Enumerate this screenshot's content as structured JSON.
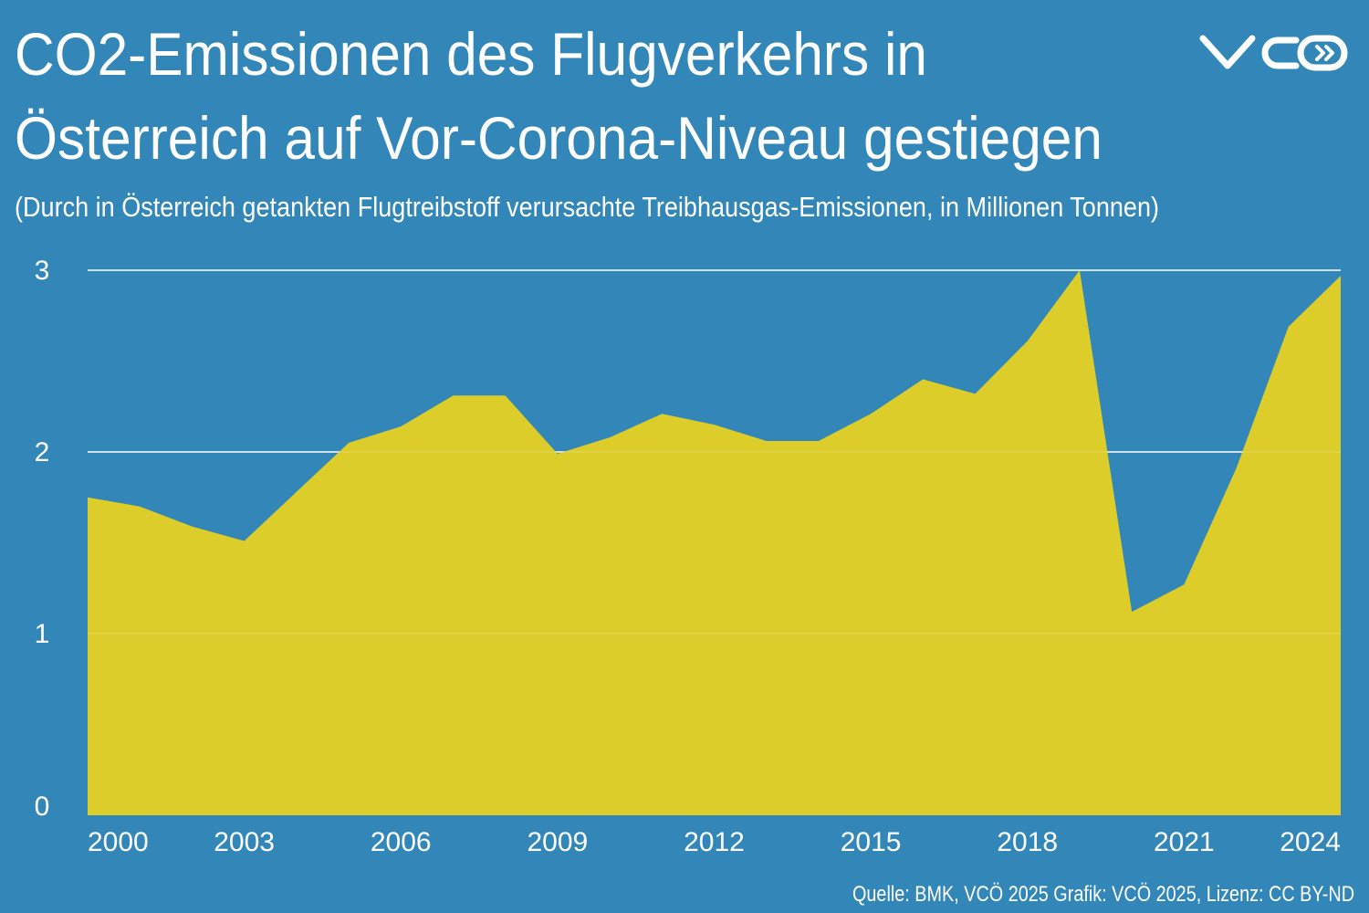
{
  "chart_data": {
    "type": "area",
    "title": [
      "CO2-Emissionen des Flugverkehrs in",
      "Österreich auf Vor-Corona-Niveau gestiegen"
    ],
    "subtitle": "(Durch in Österreich getankten Flugtreibstoff verursachte Treibhausgas-Emissionen, in Millionen Tonnen)",
    "source": "Quelle: BMK, VCÖ 2025 Grafik: VCÖ 2025, Lizenz: CC BY-ND",
    "x": [
      2000,
      2001,
      2002,
      2003,
      2004,
      2005,
      2006,
      2007,
      2008,
      2009,
      2010,
      2011,
      2012,
      2013,
      2014,
      2015,
      2016,
      2017,
      2018,
      2019,
      2020,
      2021,
      2022,
      2023,
      2024
    ],
    "values": [
      1.75,
      1.7,
      1.59,
      1.51,
      1.78,
      2.05,
      2.14,
      2.31,
      2.31,
      1.99,
      2.08,
      2.21,
      2.15,
      2.06,
      2.06,
      2.21,
      2.4,
      2.32,
      2.61,
      3.0,
      1.12,
      1.27,
      1.91,
      2.69,
      2.97
    ],
    "color": "#dccd2b",
    "xlim": [
      2000,
      2024
    ],
    "xticks": [
      2000,
      2003,
      2006,
      2009,
      2012,
      2015,
      2018,
      2021,
      2024
    ],
    "ylim": [
      0,
      3
    ],
    "yticks": [
      0,
      1,
      2,
      3
    ],
    "grid": true
  }
}
